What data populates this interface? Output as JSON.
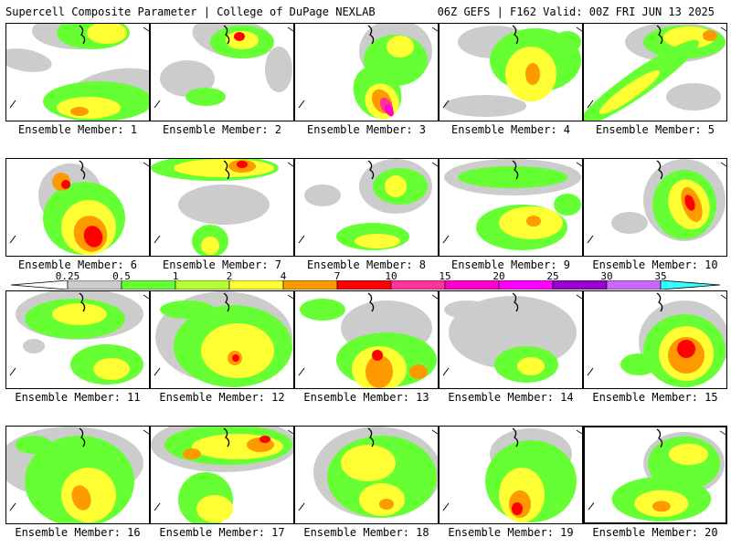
{
  "header": {
    "title_left": "Supercell Composite Parameter | College of DuPage NEXLAB",
    "title_right": "06Z GEFS | F162 Valid: 00Z FRI JUN 13 2025"
  },
  "legend": {
    "values": [
      "0.25",
      "0.5",
      "1",
      "2",
      "4",
      "7",
      "10",
      "15",
      "20",
      "25",
      "30",
      "35"
    ],
    "colors": [
      "#cccccc",
      "#66ff33",
      "#b3ff33",
      "#ffff33",
      "#ff9900",
      "#ff0000",
      "#ff3399",
      "#ff00cc",
      "#ff00ff",
      "#9900cc",
      "#cc66ff",
      "#33ffff"
    ]
  },
  "panels": [
    {
      "caption": "Ensemble Member: 1"
    },
    {
      "caption": "Ensemble Member: 2"
    },
    {
      "caption": "Ensemble Member: 3"
    },
    {
      "caption": "Ensemble Member: 4"
    },
    {
      "caption": "Ensemble Member: 5"
    },
    {
      "caption": "Ensemble Member: 6"
    },
    {
      "caption": "Ensemble Member: 7"
    },
    {
      "caption": "Ensemble Member: 8"
    },
    {
      "caption": "Ensemble Member: 9"
    },
    {
      "caption": "Ensemble Member: 10"
    },
    {
      "caption": "Ensemble Member: 11"
    },
    {
      "caption": "Ensemble Member: 12"
    },
    {
      "caption": "Ensemble Member: 13"
    },
    {
      "caption": "Ensemble Member: 14"
    },
    {
      "caption": "Ensemble Member: 15"
    },
    {
      "caption": "Ensemble Member: 16"
    },
    {
      "caption": "Ensemble Member: 17"
    },
    {
      "caption": "Ensemble Member: 18"
    },
    {
      "caption": "Ensemble Member: 19"
    },
    {
      "caption": "Ensemble Member: 20"
    }
  ]
}
